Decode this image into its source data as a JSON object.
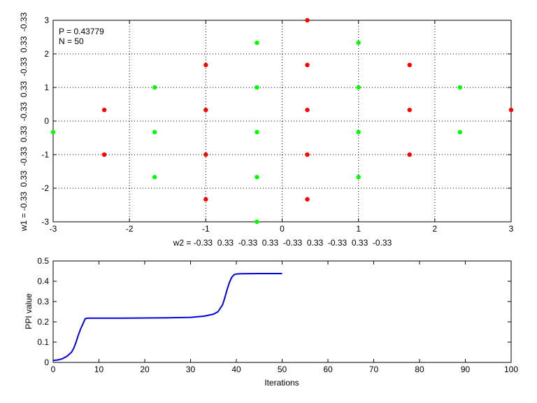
{
  "chart_data": [
    {
      "type": "scatter",
      "title": "",
      "xlabel": "w2 = -0.33  0.33  -0.33  0.33  -0.33  0.33  -0.33  0.33  -0.33",
      "ylabel": "w1 = -0.33  0.33  -0.33  0.33  -0.33  0.33  -0.33  0.33  -0.33",
      "xlim": [
        -3,
        3
      ],
      "ylim": [
        -3,
        3
      ],
      "xticks": [
        -3,
        -2,
        -1,
        0,
        1,
        2,
        3
      ],
      "yticks": [
        -3,
        -2,
        -1,
        0,
        1,
        2,
        3
      ],
      "grid": "dotted",
      "annotations": [
        "P = 0.43779",
        "N = 50"
      ],
      "series": [
        {
          "color": "#ff0000",
          "points": [
            [
              0.33,
              3.0
            ],
            [
              -1.0,
              1.67
            ],
            [
              0.33,
              1.67
            ],
            [
              1.67,
              1.67
            ],
            [
              -2.33,
              0.33
            ],
            [
              -1.0,
              0.33
            ],
            [
              0.33,
              0.33
            ],
            [
              1.67,
              0.33
            ],
            [
              3.0,
              0.33
            ],
            [
              -2.33,
              -1.0
            ],
            [
              -1.0,
              -1.0
            ],
            [
              0.33,
              -1.0
            ],
            [
              1.67,
              -1.0
            ],
            [
              -1.0,
              -2.33
            ],
            [
              0.33,
              -2.33
            ]
          ]
        },
        {
          "color": "#00ff00",
          "points": [
            [
              -0.33,
              2.33
            ],
            [
              1.0,
              2.33
            ],
            [
              -1.67,
              1.0
            ],
            [
              -0.33,
              1.0
            ],
            [
              1.0,
              1.0
            ],
            [
              2.33,
              1.0
            ],
            [
              -3.0,
              -0.33
            ],
            [
              -1.67,
              -0.33
            ],
            [
              -0.33,
              -0.33
            ],
            [
              1.0,
              -0.33
            ],
            [
              2.33,
              -0.33
            ],
            [
              -1.67,
              -1.67
            ],
            [
              -0.33,
              -1.67
            ],
            [
              1.0,
              -1.67
            ],
            [
              -0.33,
              -3.0
            ]
          ]
        }
      ]
    },
    {
      "type": "line",
      "title": "",
      "xlabel": "Iterations",
      "ylabel": "PPI value",
      "xlim": [
        0,
        100
      ],
      "ylim": [
        0,
        0.5
      ],
      "xticks": [
        0,
        10,
        20,
        30,
        40,
        50,
        60,
        70,
        80,
        90,
        100
      ],
      "yticks": [
        0,
        0.1,
        0.2,
        0.3,
        0.4,
        0.5
      ],
      "grid": "off",
      "series": [
        {
          "color": "#0000dd",
          "x": [
            0,
            1,
            2,
            3,
            4,
            4.5,
            5,
            5.5,
            6,
            6.5,
            7,
            7.5,
            10,
            15,
            20,
            25,
            30,
            33,
            35,
            36,
            37,
            37.5,
            38,
            38.5,
            39,
            39.5,
            40,
            41,
            45,
            50
          ],
          "y": [
            0.01,
            0.012,
            0.018,
            0.03,
            0.05,
            0.07,
            0.1,
            0.135,
            0.165,
            0.19,
            0.215,
            0.218,
            0.218,
            0.218,
            0.219,
            0.22,
            0.222,
            0.228,
            0.238,
            0.25,
            0.285,
            0.32,
            0.36,
            0.395,
            0.42,
            0.432,
            0.436,
            0.437,
            0.438,
            0.438
          ]
        }
      ]
    }
  ]
}
